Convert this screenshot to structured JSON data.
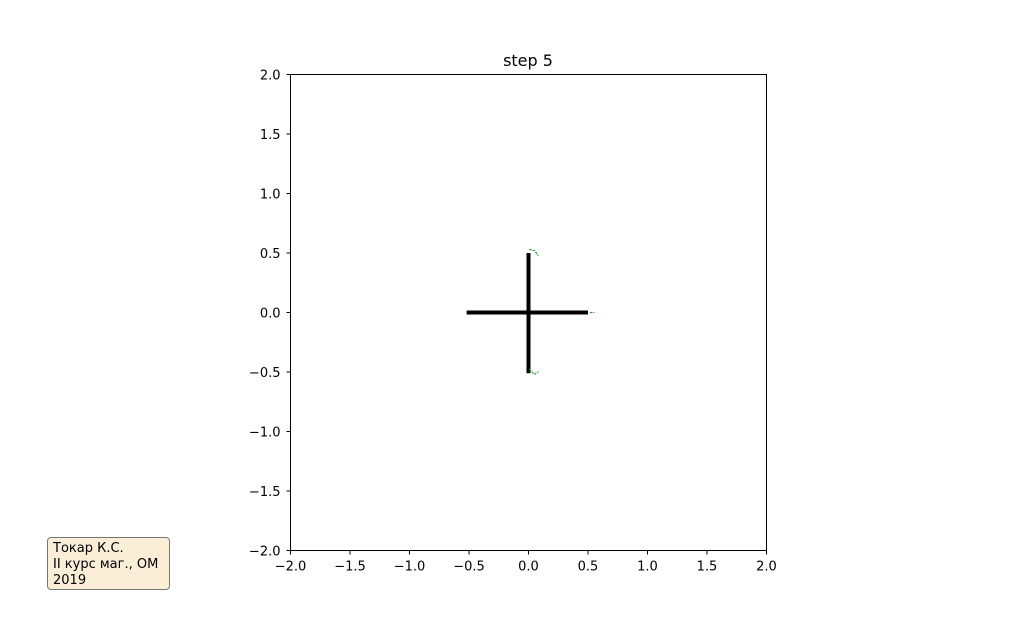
{
  "chart_data": {
    "type": "line",
    "title": "step 5",
    "xlabel": "",
    "ylabel": "",
    "xlim": [
      -2.0,
      2.0
    ],
    "ylim": [
      -2.0,
      2.0
    ],
    "grid": false,
    "x_ticks": [
      "−2.0",
      "−1.5",
      "−1.0",
      "−0.5",
      "0.0",
      "0.5",
      "1.0",
      "1.5",
      "2.0"
    ],
    "y_ticks": [
      "2.0",
      "1.5",
      "1.0",
      "0.5",
      "0.0",
      "−0.5",
      "−1.0",
      "−1.5",
      "−2.0"
    ],
    "x_tick_values": [
      -2.0,
      -1.5,
      -1.0,
      -0.5,
      0.0,
      0.5,
      1.0,
      1.5,
      2.0
    ],
    "y_tick_values": [
      2.0,
      1.5,
      1.0,
      0.5,
      0.0,
      -0.5,
      -1.0,
      -1.5,
      -2.0
    ],
    "series": [
      {
        "style": "solid",
        "color": "#000000",
        "segments": [
          {
            "x": [
              -0.52,
              0.5
            ],
            "y": [
              0.0,
              0.0
            ]
          },
          {
            "x": [
              0.0,
              0.0
            ],
            "y": [
              0.5,
              -0.51
            ]
          }
        ]
      },
      {
        "style": "dotted",
        "color": "#2ca02c",
        "segments": [
          {
            "x": [
              0.01,
              0.05,
              0.08
            ],
            "y": [
              0.53,
              0.52,
              0.48
            ]
          },
          {
            "x": [
              0.01,
              0.05,
              0.08
            ],
            "y": [
              -0.48,
              -0.52,
              -0.5
            ]
          },
          {
            "x": [
              0.52,
              0.55
            ],
            "y": [
              0.0,
              0.0
            ]
          }
        ]
      }
    ]
  },
  "annotation": {
    "lines": [
      "Токар К.С.",
      "II курс маг., ОМ",
      "2019"
    ]
  }
}
